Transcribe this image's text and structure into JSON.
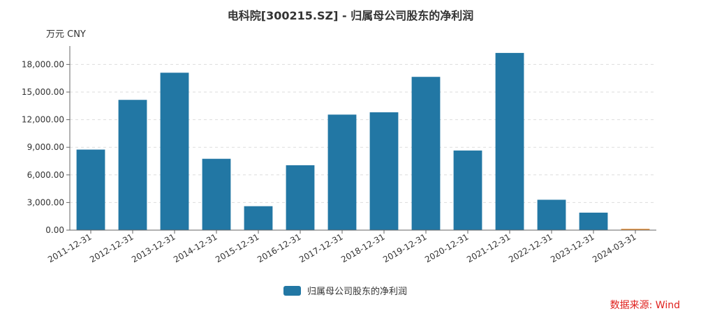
{
  "chart_data": {
    "type": "bar",
    "title": "电科院[300215.SZ] - 归属母公司股东的净利润",
    "unit_label": "万元  CNY",
    "categories": [
      "2011-12-31",
      "2012-12-31",
      "2013-12-31",
      "2014-12-31",
      "2015-12-31",
      "2016-12-31",
      "2017-12-31",
      "2018-12-31",
      "2019-12-31",
      "2020-12-31",
      "2021-12-31",
      "2022-12-31",
      "2023-12-31",
      "2024-03-31"
    ],
    "series": [
      {
        "name": "归属母公司股东的净利润",
        "color": "#2277a4",
        "values": [
          8750,
          14150,
          17100,
          7750,
          2600,
          7050,
          12550,
          12800,
          16650,
          8650,
          19250,
          3300,
          1900,
          100
        ]
      }
    ],
    "highlight_color": "#e8994a",
    "yticks": [
      "0.00",
      "3,000.00",
      "6,000.00",
      "9,000.00",
      "12,000.00",
      "15,000.00",
      "18,000.00"
    ],
    "ylim": [
      0,
      20000
    ],
    "grid": true,
    "legend_position": "bottom"
  },
  "source_label": "数据来源: Wind"
}
